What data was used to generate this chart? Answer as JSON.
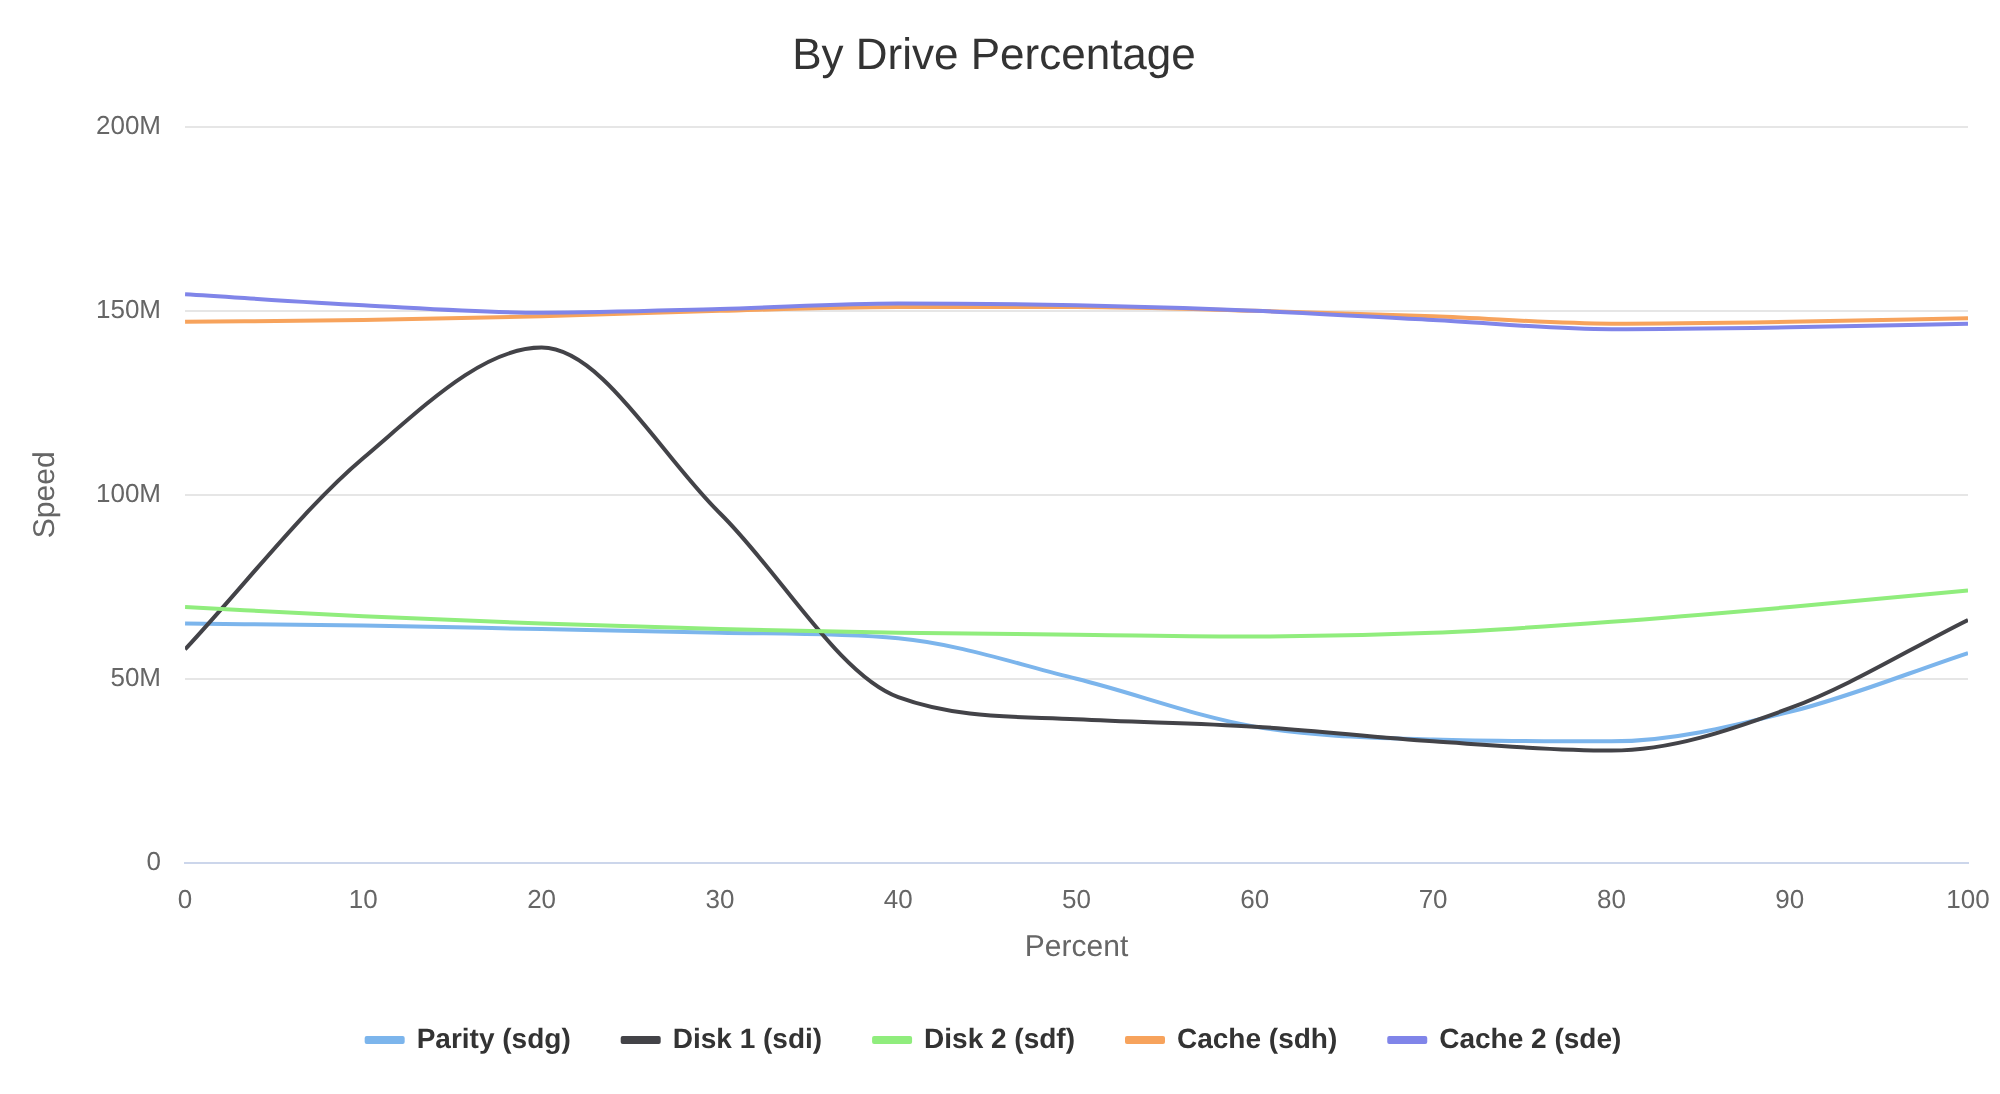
{
  "chart_data": {
    "type": "line",
    "title": "By Drive Percentage",
    "xlabel": "Percent",
    "ylabel": "Speed",
    "x": [
      0,
      10,
      20,
      30,
      40,
      50,
      60,
      70,
      80,
      90,
      100
    ],
    "series": [
      {
        "name": "Parity (sdg)",
        "color": "#7cb5ec",
        "values": [
          65,
          64.5,
          63.5,
          62.5,
          61,
          50,
          37,
          33.5,
          33,
          41,
          57
        ]
      },
      {
        "name": "Disk 1 (sdi)",
        "color": "#434348",
        "values": [
          58,
          110,
          140,
          95,
          45,
          39,
          37,
          33,
          30.5,
          42,
          66
        ]
      },
      {
        "name": "Disk 2 (sdf)",
        "color": "#90ed7d",
        "values": [
          69.5,
          67,
          65,
          63.5,
          62.5,
          62,
          61.5,
          62.5,
          65.5,
          69.5,
          74
        ]
      },
      {
        "name": "Cache (sdh)",
        "color": "#f7a35c",
        "values": [
          147,
          147.5,
          148.5,
          150,
          151,
          151,
          150,
          148.5,
          146.5,
          147,
          148
        ]
      },
      {
        "name": "Cache 2 (sde)",
        "color": "#8085e9",
        "values": [
          154.5,
          151.5,
          149.5,
          150.5,
          152,
          151.5,
          150,
          147.5,
          145,
          145.5,
          146.5
        ]
      }
    ],
    "xlim": [
      0,
      100
    ],
    "xticks": [
      0,
      10,
      20,
      30,
      40,
      50,
      60,
      70,
      80,
      90,
      100
    ],
    "ylim": [
      0,
      200
    ],
    "yticks": [
      0,
      {
        "value": 50,
        "label": "50M"
      },
      {
        "value": 100,
        "label": "100M"
      },
      {
        "value": 150,
        "label": "150M"
      },
      {
        "value": 200,
        "label": "200M"
      }
    ],
    "grid": "y",
    "legend": "bottom",
    "marker": "none",
    "line_style": "solid"
  }
}
